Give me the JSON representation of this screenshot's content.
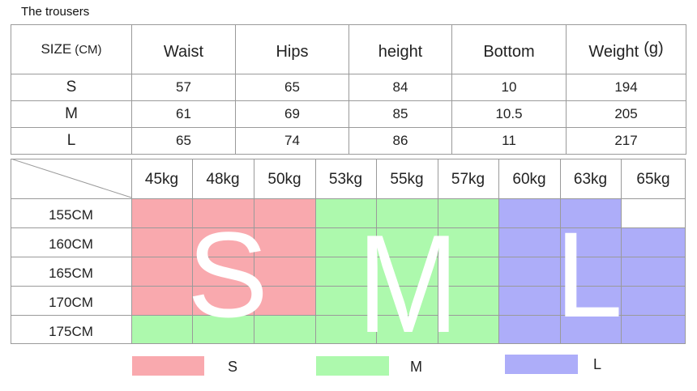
{
  "title": "The trousers",
  "size_table": {
    "header": {
      "size": "SIZE",
      "size_unit": "(CM)",
      "columns": [
        "Waist",
        "Hips",
        "height",
        "Bottom"
      ],
      "weight": "Weight",
      "weight_unit": "(g)"
    },
    "rows": [
      {
        "size": "S",
        "waist": "57",
        "hips": "65",
        "height": "84",
        "bottom": "10",
        "weight": "194"
      },
      {
        "size": "M",
        "waist": "61",
        "hips": "69",
        "height": "85",
        "bottom": "10.5",
        "weight": "205"
      },
      {
        "size": "L",
        "waist": "65",
        "hips": "74",
        "height": "86",
        "bottom": "11",
        "weight": "217"
      }
    ]
  },
  "chart": {
    "weights": [
      "45kg",
      "48kg",
      "50kg",
      "53kg",
      "55kg",
      "57kg",
      "60kg",
      "63kg",
      "65kg"
    ],
    "heights": [
      "155CM",
      "160CM",
      "165CM",
      "170CM",
      "175CM"
    ],
    "grid": [
      [
        "S",
        "S",
        "S",
        "M",
        "M",
        "M",
        "L",
        "L",
        ""
      ],
      [
        "S",
        "S",
        "S",
        "M",
        "M",
        "M",
        "L",
        "L",
        "L"
      ],
      [
        "S",
        "S",
        "S",
        "M",
        "M",
        "M",
        "L",
        "L",
        "L"
      ],
      [
        "S",
        "S",
        "S",
        "M",
        "M",
        "M",
        "L",
        "L",
        "L"
      ],
      [
        "M",
        "M",
        "M",
        "M",
        "M",
        "M",
        "L",
        "L",
        "L"
      ]
    ],
    "big_letters": {
      "s": "S",
      "m": "M",
      "l": "L"
    },
    "colors": {
      "S": "#f9a9ae",
      "M": "#adf9ad",
      "L": "#adadf9",
      "line": "#9a9a9a"
    }
  },
  "legend": [
    {
      "label": "S",
      "color": "#f9a9ae"
    },
    {
      "label": "M",
      "color": "#adf9ad"
    },
    {
      "label": "L",
      "color": "#adadf9"
    }
  ]
}
